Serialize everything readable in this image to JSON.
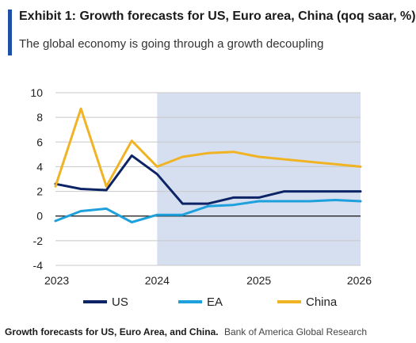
{
  "header": {
    "title": "Exhibit 1: Growth forecasts for US, Euro area, China (qoq saar, %)",
    "subtitle": "The global economy is going through a growth decoupling"
  },
  "caption": {
    "lead": "Growth forecasts for US, Euro Area, and China.",
    "source": "Bank of America Global Research"
  },
  "colors": {
    "accent": "#1f4fa8",
    "forecast_shade": "#d6dff0",
    "US": "#0c2466",
    "EA": "#1ea0dc",
    "China": "#f0b323"
  },
  "chart_data": {
    "type": "line",
    "xlim": [
      2023.0,
      2026.0
    ],
    "ylim": [
      -4,
      10
    ],
    "yticks": [
      -4,
      -2,
      0,
      2,
      4,
      6,
      8,
      10
    ],
    "xticks": [
      2023,
      2024,
      2025,
      2026
    ],
    "x_tick_labels": [
      "2023",
      "2024",
      "2025",
      "2026"
    ],
    "forecast_region": [
      2024.0,
      2026.0
    ],
    "grid": "horizontal",
    "legend": "bottom",
    "series": [
      {
        "name": "US",
        "color": "#0c2466",
        "x": [
          2023.0,
          2023.25,
          2023.5,
          2023.75,
          2024.0,
          2024.25,
          2024.5,
          2024.75,
          2025.0,
          2025.25,
          2025.5,
          2025.75,
          2026.0
        ],
        "y": [
          2.6,
          2.2,
          2.1,
          4.9,
          3.4,
          1.0,
          1.0,
          1.5,
          1.5,
          2.0,
          2.0,
          2.0,
          2.0
        ]
      },
      {
        "name": "EA",
        "color": "#1ea0dc",
        "x": [
          2023.0,
          2023.25,
          2023.5,
          2023.75,
          2024.0,
          2024.25,
          2024.5,
          2024.75,
          2025.0,
          2025.25,
          2025.5,
          2025.75,
          2026.0
        ],
        "y": [
          -0.4,
          0.4,
          0.6,
          -0.5,
          0.1,
          0.1,
          0.8,
          0.9,
          1.2,
          1.2,
          1.2,
          1.3,
          1.2
        ]
      },
      {
        "name": "China",
        "color": "#f0b323",
        "x": [
          2023.0,
          2023.25,
          2023.5,
          2023.75,
          2024.0,
          2024.25,
          2024.5,
          2024.75,
          2025.0,
          2025.25,
          2025.5,
          2025.75,
          2026.0
        ],
        "y": [
          2.4,
          8.7,
          2.4,
          6.1,
          4.0,
          4.8,
          5.1,
          5.2,
          4.8,
          4.6,
          4.4,
          4.2,
          4.0
        ]
      }
    ]
  }
}
